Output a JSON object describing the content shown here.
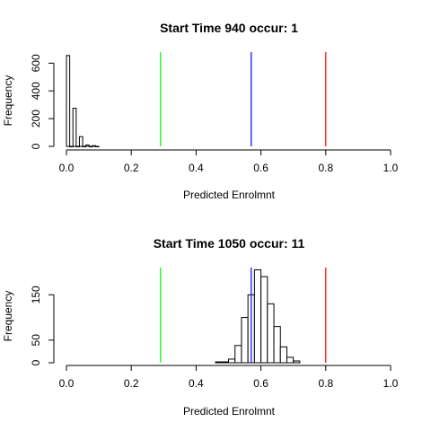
{
  "chart_data": [
    {
      "type": "bar",
      "title": "Start Time 940 occur: 1",
      "xlabel": "Predicted Enrolmnt",
      "ylabel": "Frequency",
      "xlim": [
        0,
        1
      ],
      "ylim": [
        0,
        680
      ],
      "xticks": [
        "0.0",
        "0.2",
        "0.4",
        "0.6",
        "0.8",
        "1.0"
      ],
      "yticks": [
        "0",
        "200",
        "400",
        "600"
      ],
      "grid": false,
      "bin_width": 0.01,
      "bins": [
        {
          "x0": 0.0,
          "count": 655
        },
        {
          "x0": 0.01,
          "count": 0
        },
        {
          "x0": 0.02,
          "count": 275
        },
        {
          "x0": 0.03,
          "count": 0
        },
        {
          "x0": 0.04,
          "count": 70
        },
        {
          "x0": 0.05,
          "count": 0
        },
        {
          "x0": 0.06,
          "count": 10
        },
        {
          "x0": 0.07,
          "count": 0
        },
        {
          "x0": 0.08,
          "count": 5
        },
        {
          "x0": 0.09,
          "count": 0
        }
      ],
      "vlines": [
        {
          "x": 0.29,
          "color": "#00ff00"
        },
        {
          "x": 0.57,
          "color": "#0000ff"
        },
        {
          "x": 0.8,
          "color": "#ff0000"
        }
      ]
    },
    {
      "type": "bar",
      "title": "Start Time 1050 occur: 11",
      "xlabel": "Predicted Enrolmnt",
      "ylabel": "Frequency",
      "xlim": [
        0,
        1
      ],
      "ylim": [
        0,
        210
      ],
      "xticks": [
        "0.0",
        "0.2",
        "0.4",
        "0.6",
        "0.8",
        "1.0"
      ],
      "yticks": [
        "0",
        "50",
        "150"
      ],
      "ytick_values": [
        0,
        50,
        150
      ],
      "grid": false,
      "bin_width": 0.02,
      "bins": [
        {
          "x0": 0.46,
          "count": 2
        },
        {
          "x0": 0.48,
          "count": 2
        },
        {
          "x0": 0.5,
          "count": 8
        },
        {
          "x0": 0.52,
          "count": 38
        },
        {
          "x0": 0.54,
          "count": 100
        },
        {
          "x0": 0.56,
          "count": 150
        },
        {
          "x0": 0.58,
          "count": 205
        },
        {
          "x0": 0.6,
          "count": 190
        },
        {
          "x0": 0.62,
          "count": 130
        },
        {
          "x0": 0.64,
          "count": 80
        },
        {
          "x0": 0.66,
          "count": 35
        },
        {
          "x0": 0.68,
          "count": 12
        },
        {
          "x0": 0.7,
          "count": 4
        }
      ],
      "vlines": [
        {
          "x": 0.29,
          "color": "#00ff00"
        },
        {
          "x": 0.57,
          "color": "#0000ff"
        },
        {
          "x": 0.8,
          "color": "#ff0000"
        }
      ]
    }
  ]
}
